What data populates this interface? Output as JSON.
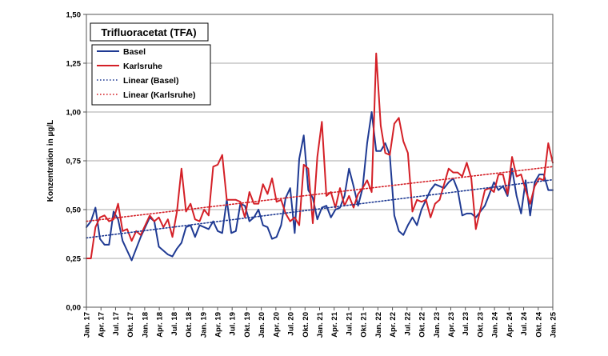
{
  "chart_data": {
    "type": "line",
    "title": "Trifluoracetat (TFA)",
    "ylabel": "Konzentration in µg/L",
    "xlabel": "",
    "ylim": [
      0,
      1.5
    ],
    "yticks": [
      "0,00",
      "0,25",
      "0,50",
      "0,75",
      "1,00",
      "1,25",
      "1,50"
    ],
    "xticks": [
      "Jan. 17",
      "Apr. 17",
      "Jul. 17",
      "Okt. 17",
      "Jan. 18",
      "Apr. 18",
      "Jul. 18",
      "Okt. 18",
      "Jan. 19",
      "Apr. 19",
      "Jul. 19",
      "Okt. 19",
      "Jan. 20",
      "Apr. 20",
      "Jul. 20",
      "Okt. 20",
      "Jan. 21",
      "Apr. 21",
      "Jul. 21",
      "Okt. 21",
      "Jan. 22",
      "Apr. 22",
      "Jul. 22",
      "Okt. 22",
      "Jan. 23",
      "Apr. 23",
      "Jul. 23",
      "Okt. 23",
      "Jan. 24",
      "Apr. 24",
      "Jul. 24",
      "Okt. 24",
      "Jan. 25"
    ],
    "grid": "horizontal",
    "legend_position": "top-left",
    "series": [
      {
        "name": "Basel",
        "color": "#1f3a93",
        "style": "solid",
        "values": [
          0.41,
          0.44,
          0.51,
          0.35,
          0.32,
          0.32,
          0.49,
          0.45,
          0.34,
          0.29,
          0.24,
          0.3,
          0.36,
          0.41,
          0.46,
          0.44,
          0.31,
          0.29,
          0.27,
          0.26,
          0.3,
          0.33,
          0.41,
          0.42,
          0.36,
          0.42,
          0.41,
          0.4,
          0.44,
          0.39,
          0.38,
          0.55,
          0.38,
          0.39,
          0.53,
          0.52,
          0.44,
          0.46,
          0.5,
          0.42,
          0.41,
          0.35,
          0.36,
          0.42,
          0.56,
          0.61,
          0.38,
          0.76,
          0.88,
          0.6,
          0.56,
          0.45,
          0.51,
          0.52,
          0.46,
          0.5,
          0.51,
          0.57,
          0.71,
          0.62,
          0.52,
          0.61,
          0.84,
          1.0,
          0.8,
          0.8,
          0.84,
          0.78,
          0.47,
          0.39,
          0.37,
          0.42,
          0.46,
          0.42,
          0.5,
          0.55,
          0.6,
          0.63,
          0.62,
          0.61,
          0.64,
          0.66,
          0.6,
          0.47,
          0.48,
          0.48,
          0.46,
          0.49,
          0.52,
          0.58,
          0.64,
          0.6,
          0.62,
          0.57,
          0.71,
          0.57,
          0.48,
          0.65,
          0.47,
          0.64,
          0.68,
          0.68,
          0.6,
          0.6
        ]
      },
      {
        "name": "Karlsruhe",
        "color": "#d42027",
        "style": "solid",
        "values": [
          0.25,
          0.25,
          0.41,
          0.46,
          0.47,
          0.44,
          0.45,
          0.53,
          0.39,
          0.4,
          0.34,
          0.39,
          0.37,
          0.42,
          0.47,
          0.44,
          0.46,
          0.41,
          0.45,
          0.36,
          0.49,
          0.71,
          0.49,
          0.53,
          0.45,
          0.44,
          0.5,
          0.47,
          0.72,
          0.73,
          0.78,
          0.55,
          0.55,
          0.55,
          0.54,
          0.46,
          0.59,
          0.53,
          0.53,
          0.63,
          0.58,
          0.66,
          0.54,
          0.55,
          0.48,
          0.44,
          0.46,
          0.42,
          0.73,
          0.71,
          0.43,
          0.77,
          0.95,
          0.57,
          0.59,
          0.51,
          0.61,
          0.52,
          0.57,
          0.51,
          0.58,
          0.61,
          0.65,
          0.59,
          1.3,
          0.93,
          0.79,
          0.78,
          0.94,
          0.97,
          0.85,
          0.79,
          0.49,
          0.55,
          0.54,
          0.55,
          0.46,
          0.53,
          0.55,
          0.63,
          0.71,
          0.69,
          0.69,
          0.67,
          0.74,
          0.66,
          0.4,
          0.5,
          0.6,
          0.61,
          0.59,
          0.68,
          0.68,
          0.58,
          0.77,
          0.67,
          0.68,
          0.6,
          0.53,
          0.62,
          0.66,
          0.65,
          0.84,
          0.74
        ]
      },
      {
        "name": "Linear (Basel)",
        "color": "#1f3a93",
        "style": "dotted",
        "values": [
          0.355,
          0.653
        ]
      },
      {
        "name": "Linear (Karlsruhe)",
        "color": "#d42027",
        "style": "dotted",
        "values": [
          0.44,
          0.72
        ]
      }
    ]
  }
}
